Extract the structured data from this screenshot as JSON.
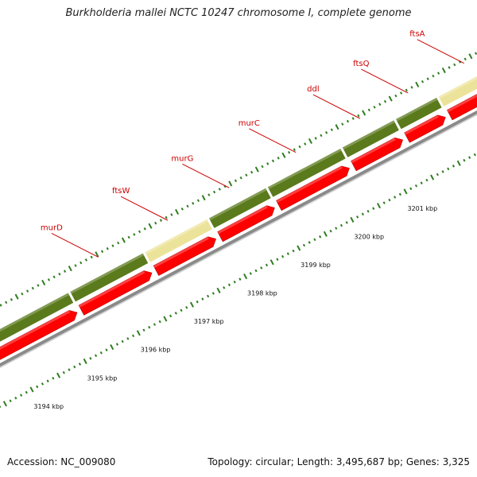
{
  "header": {
    "title": "Burkholderia mallei NCTC 10247 chromosome I, complete genome"
  },
  "footer": {
    "accession": "Accession: NC_009080",
    "summary": "Topology: circular; Length: 3,495,687 bp; Genes: 3,325"
  },
  "colors": {
    "cog_dark_green": "#5a7a1c",
    "cog_pale_yellow": "#ece39a",
    "cds_red": "#ff0000",
    "label_red": "#cc0000",
    "tick_green": "#2e7d1f",
    "backbone_gray": "#8a8a8a"
  },
  "genes": [
    {
      "name": "murD",
      "start_kbp": 3195.3,
      "end_kbp": 3196.7
    },
    {
      "name": "ftsW",
      "start_kbp": 3196.7,
      "end_kbp": 3197.9
    },
    {
      "name": "murG",
      "start_kbp": 3197.9,
      "end_kbp": 3199.0
    },
    {
      "name": "murC",
      "start_kbp": 3199.0,
      "end_kbp": 3200.4
    },
    {
      "name": "ddl",
      "start_kbp": 3200.4,
      "end_kbp": 3201.4
    },
    {
      "name": "ftsQ",
      "start_kbp": 3201.4,
      "end_kbp": 3202.2
    },
    {
      "name": "ftsA",
      "start_kbp": 3202.2,
      "end_kbp": 3203.5
    }
  ],
  "cog_segments": [
    {
      "start_kbp": 3193.5,
      "end_kbp": 3195.3,
      "category": "dark_green"
    },
    {
      "start_kbp": 3195.3,
      "end_kbp": 3196.7,
      "category": "dark_green"
    },
    {
      "start_kbp": 3196.7,
      "end_kbp": 3197.9,
      "category": "pale_yellow"
    },
    {
      "start_kbp": 3197.9,
      "end_kbp": 3199.0,
      "category": "dark_green"
    },
    {
      "start_kbp": 3199.0,
      "end_kbp": 3200.4,
      "category": "dark_green"
    },
    {
      "start_kbp": 3200.4,
      "end_kbp": 3201.4,
      "category": "dark_green"
    },
    {
      "start_kbp": 3201.4,
      "end_kbp": 3202.2,
      "category": "dark_green"
    },
    {
      "start_kbp": 3202.2,
      "end_kbp": 3203.5,
      "category": "pale_yellow"
    },
    {
      "start_kbp": 3203.5,
      "end_kbp": 3204.0,
      "category": "dark_green"
    }
  ],
  "cds": [
    {
      "start_kbp": 3193.5,
      "end_kbp": 3195.3
    },
    {
      "start_kbp": 3195.3,
      "end_kbp": 3196.7
    },
    {
      "start_kbp": 3196.7,
      "end_kbp": 3197.9
    },
    {
      "start_kbp": 3197.9,
      "end_kbp": 3199.0
    },
    {
      "start_kbp": 3199.0,
      "end_kbp": 3200.4
    },
    {
      "start_kbp": 3200.4,
      "end_kbp": 3201.4
    },
    {
      "start_kbp": 3201.4,
      "end_kbp": 3202.2
    },
    {
      "start_kbp": 3202.2,
      "end_kbp": 3203.5
    }
  ],
  "scale": {
    "labels": [
      {
        "kbp": 3194,
        "text": "3194 kbp"
      },
      {
        "kbp": 3195,
        "text": "3195 kbp"
      },
      {
        "kbp": 3196,
        "text": "3196 kbp"
      },
      {
        "kbp": 3197,
        "text": "3197 kbp"
      },
      {
        "kbp": 3198,
        "text": "3198 kbp"
      },
      {
        "kbp": 3199,
        "text": "3199 kbp"
      },
      {
        "kbp": 3200,
        "text": "3200 kbp"
      },
      {
        "kbp": 3201,
        "text": "3201 kbp"
      }
    ],
    "minor_step_kbp": 0.1,
    "major_step_kbp": 0.5
  }
}
